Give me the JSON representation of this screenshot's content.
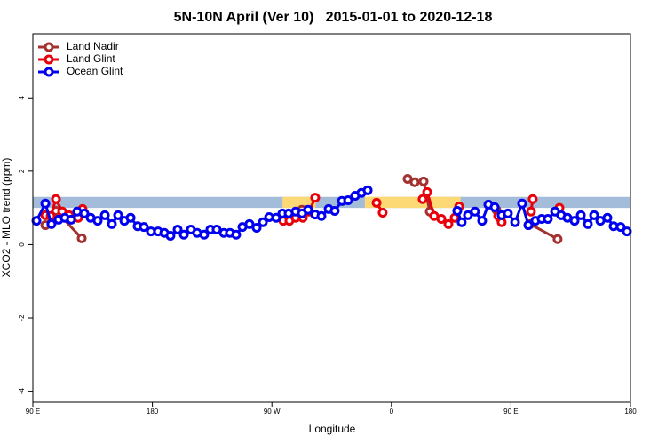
{
  "chart_data": {
    "type": "line",
    "title": "5N-10N April (Ver 10)   2015-01-01 to 2020-12-18",
    "x_label": "Longitude",
    "y_label": "XCO2 - MLO trend (ppm)",
    "xlim": [
      90,
      540
    ],
    "ylim": [
      -4.3,
      5.75
    ],
    "xticks": [
      {
        "value": 90,
        "label": "90 E"
      },
      {
        "value": 180,
        "label": "180"
      },
      {
        "value": 270,
        "label": "90 W"
      },
      {
        "value": 360,
        "label": "0"
      },
      {
        "value": 450,
        "label": "90 E"
      },
      {
        "value": 540,
        "label": "180"
      }
    ],
    "yticks": [
      -4,
      -2,
      0,
      2,
      4
    ],
    "legend": "top-left",
    "reference_band": {
      "ymin": 1.0,
      "ymax": 1.3,
      "color": "#a3bcd9"
    },
    "highlight_spans": {
      "color": "#fcd975",
      "spans": [
        {
          "xmin": 278,
          "xmax": 303
        },
        {
          "xmin": 340,
          "xmax": 412
        }
      ]
    },
    "series": [
      {
        "name": "Land Nadir",
        "color": "#a3312f",
        "x": [
          99.4,
          107.4,
          126.8,
          200,
          292.6,
          330,
          372.2,
          377.5,
          384.2,
          388.9,
          420,
          439,
          442.3,
          455,
          464.4,
          485.1
        ],
        "values": [
          0.53,
          0.92,
          0.17,
          null,
          0.95,
          null,
          1.79,
          1.7,
          1.72,
          0.9,
          null,
          0.95,
          0.7,
          null,
          0.56,
          0.15
        ]
      },
      {
        "name": "Land Glint",
        "color": "#e8000b",
        "x": [
          99.4,
          103.4,
          107.4,
          112.1,
          117.4,
          124.1,
          127.4,
          200,
          278.6,
          283.2,
          287.9,
          293.3,
          298,
          302.6,
          330,
          348.8,
          353.4,
          370,
          383.5,
          386.9,
          392.2,
          397.6,
          402.9,
          407.6,
          411,
          425,
          440.4,
          443,
          455,
          465.1,
          466.4,
          475,
          484.5,
          486.5
        ],
        "values": [
          0.8,
          0.78,
          1.24,
          0.9,
          0.8,
          0.73,
          0.97,
          null,
          0.65,
          0.65,
          0.73,
          0.73,
          0.9,
          1.28,
          null,
          1.14,
          0.87,
          null,
          1.24,
          1.43,
          0.78,
          0.7,
          0.56,
          0.73,
          1.04,
          null,
          0.78,
          0.61,
          null,
          0.9,
          1.24,
          null,
          0.9,
          1.0
        ]
      },
      {
        "name": "Ocean Glint",
        "color": "#0000ee",
        "x": [
          92.7,
          99.4,
          104,
          109.4,
          114,
          118.8,
          123.4,
          128.8,
          133.5,
          138.8,
          144.2,
          149.5,
          154.2,
          158.9,
          163.6,
          168.9,
          173.6,
          178.9,
          184.3,
          189,
          193.6,
          199,
          203.7,
          209,
          213.7,
          219,
          223.7,
          228.4,
          233.8,
          238.4,
          243.1,
          247.8,
          253.1,
          258.5,
          263.2,
          267.9,
          273.2,
          277.9,
          282.6,
          287.9,
          292.6,
          297.3,
          302.6,
          307.3,
          312.7,
          317.3,
          322.7,
          327.4,
          332.7,
          337.4,
          342.1,
          375,
          409.6,
          412.9,
          417.6,
          422.9,
          428.3,
          433,
          437.7,
          443,
          447.7,
          453.1,
          458.4,
          463.1,
          468.4,
          473.1,
          477.8,
          483.2,
          487.8,
          492.5,
          497.9,
          502.6,
          507.9,
          512.6,
          517.3,
          522.6,
          527.3,
          532.6,
          537.3
        ],
        "values": [
          0.65,
          1.12,
          0.56,
          0.68,
          0.73,
          0.68,
          0.9,
          0.85,
          0.73,
          0.65,
          0.8,
          0.56,
          0.8,
          0.65,
          0.73,
          0.5,
          0.48,
          0.36,
          0.36,
          0.32,
          0.24,
          0.41,
          0.27,
          0.41,
          0.32,
          0.27,
          0.41,
          0.41,
          0.32,
          0.32,
          0.27,
          0.48,
          0.56,
          0.46,
          0.61,
          0.75,
          0.73,
          0.85,
          0.85,
          0.9,
          0.85,
          0.95,
          0.82,
          0.78,
          0.97,
          0.92,
          1.19,
          1.21,
          1.33,
          1.41,
          1.48,
          null,
          0.92,
          0.61,
          0.8,
          0.9,
          0.65,
          1.09,
          1.02,
          0.8,
          0.85,
          0.61,
          1.12,
          0.53,
          0.65,
          0.7,
          0.7,
          0.9,
          0.8,
          0.73,
          0.65,
          0.8,
          0.56,
          0.8,
          0.65,
          0.73,
          0.5,
          0.48,
          0.36
        ]
      }
    ]
  }
}
